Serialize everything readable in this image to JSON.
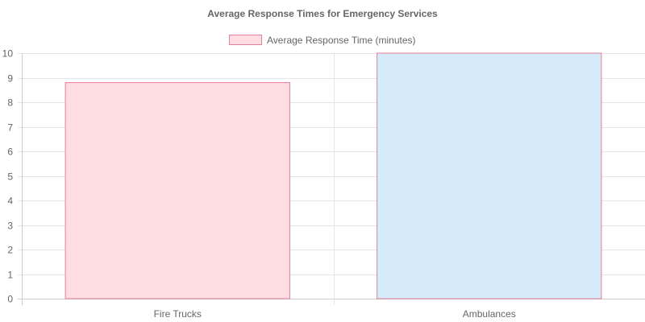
{
  "chart_data": {
    "type": "bar",
    "title": "Average Response Times for Emergency Services",
    "categories": [
      "Fire Trucks",
      "Ambulances"
    ],
    "series": [
      {
        "name": "Average Response Time (minutes)",
        "values": [
          8.8,
          10
        ],
        "fill_colors": [
          "#ffdde3",
          "#d6ebf9"
        ],
        "border_color": "#e57f9b"
      }
    ],
    "ylim": [
      0,
      10
    ],
    "yticks": [
      "0",
      "1",
      "2",
      "3",
      "4",
      "5",
      "6",
      "7",
      "8",
      "9",
      "10"
    ],
    "grid": true,
    "legend_position": "top",
    "colors": {
      "title": "#666666",
      "tick_label": "#666666",
      "grid": "#e5e5e5",
      "axis": "#cccccc"
    }
  }
}
